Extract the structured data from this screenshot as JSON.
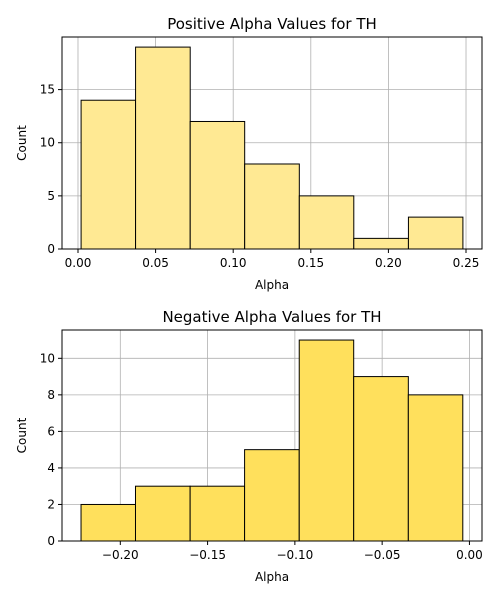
{
  "chart_data": [
    {
      "type": "bar",
      "title": "Positive Alpha Values for TH",
      "xlabel": "Alpha",
      "ylabel": "Count",
      "bin_edges": [
        0.002,
        0.0371,
        0.0723,
        0.1074,
        0.1426,
        0.1777,
        0.2129,
        0.248
      ],
      "values": [
        14,
        19,
        12,
        8,
        5,
        1,
        3
      ],
      "xlim": [
        -0.0103,
        0.2603
      ],
      "ylim": [
        0,
        19.95
      ],
      "xticks": [
        0.0,
        0.05,
        0.1,
        0.15,
        0.2,
        0.25
      ],
      "xtick_labels": [
        "0.00",
        "0.05",
        "0.10",
        "0.15",
        "0.20",
        "0.25"
      ],
      "yticks": [
        0,
        5,
        10,
        15
      ],
      "ytick_labels": [
        "0",
        "5",
        "10",
        "15"
      ],
      "bar_color": "#ffe993",
      "grid": true
    },
    {
      "type": "bar",
      "title": "Negative Alpha Values for TH",
      "xlabel": "Alpha",
      "ylabel": "Count",
      "bin_edges": [
        -0.2225,
        -0.1913,
        -0.16,
        -0.1288,
        -0.0975,
        -0.0663,
        -0.035,
        -0.0038
      ],
      "values": [
        2,
        3,
        3,
        5,
        11,
        9,
        8
      ],
      "xlim": [
        -0.2334,
        0.0072
      ],
      "ylim": [
        0,
        11.55
      ],
      "xticks": [
        -0.2,
        -0.15,
        -0.1,
        -0.05,
        0.0
      ],
      "xtick_labels": [
        "−0.20",
        "−0.15",
        "−0.10",
        "−0.05",
        "0.00"
      ],
      "yticks": [
        0,
        2,
        4,
        6,
        8,
        10
      ],
      "ytick_labels": [
        "0",
        "2",
        "4",
        "6",
        "8",
        "10"
      ],
      "bar_color": "#ffe05c",
      "grid": true
    }
  ]
}
